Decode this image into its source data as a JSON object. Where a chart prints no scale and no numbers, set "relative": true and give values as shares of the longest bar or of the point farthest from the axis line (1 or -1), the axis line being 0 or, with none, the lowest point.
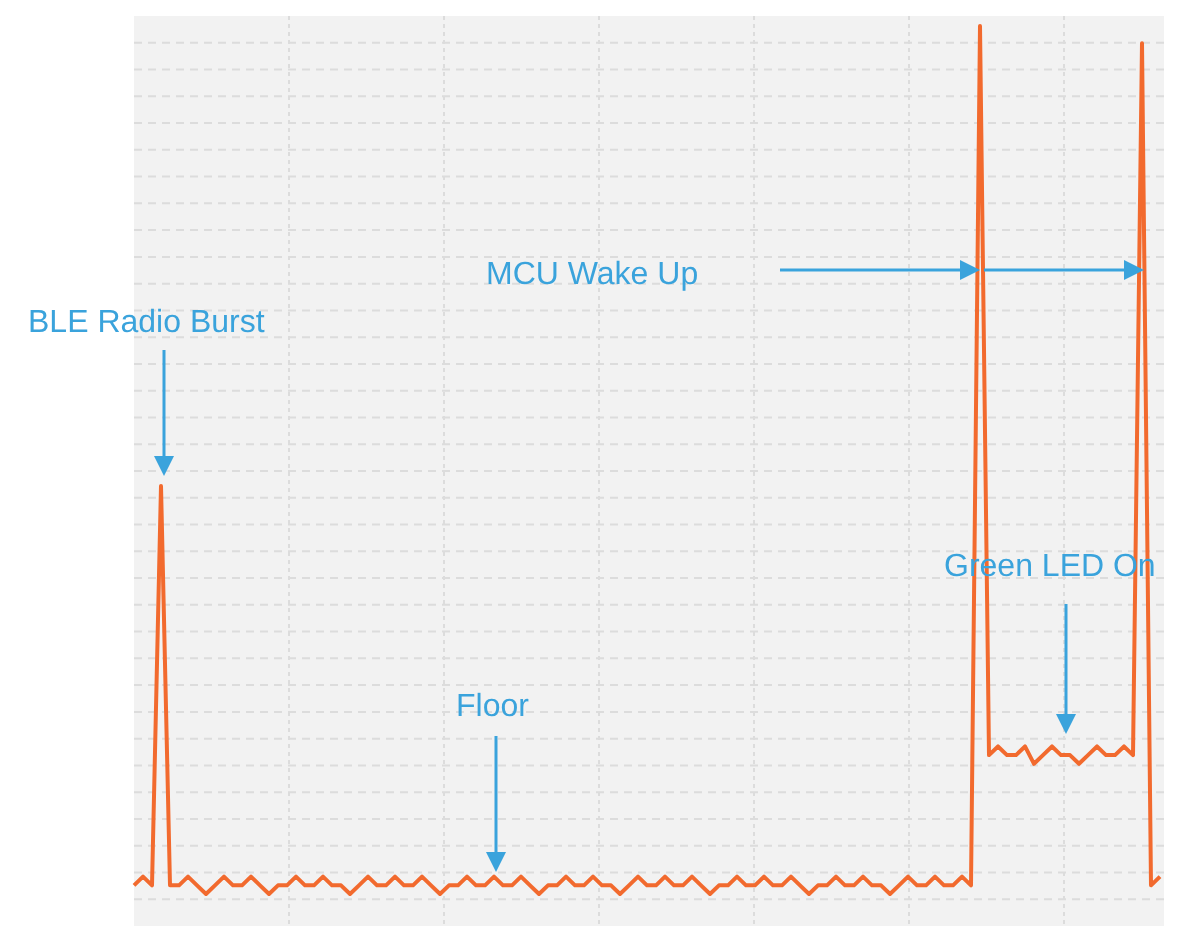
{
  "chart_data": {
    "type": "line",
    "relative": true,
    "grid": true,
    "categories": [
      null,
      null,
      null,
      null,
      null,
      null,
      null,
      null,
      null,
      null,
      null,
      null,
      null,
      null,
      null,
      null,
      null,
      null,
      null,
      null,
      null,
      null,
      null,
      null,
      null,
      null,
      null,
      null,
      null,
      null,
      null,
      null,
      null,
      null,
      null,
      null,
      null,
      null,
      null,
      null,
      null,
      null,
      null,
      null,
      null,
      null,
      null,
      null,
      null,
      null,
      null,
      null,
      null,
      null,
      null,
      null,
      null,
      null,
      null,
      null,
      null,
      null,
      null,
      null,
      null,
      null,
      null,
      null,
      null,
      null,
      null,
      null,
      null,
      null,
      null,
      null,
      null,
      null,
      null,
      null,
      null,
      null,
      null,
      null,
      null,
      null,
      null,
      null,
      null,
      null,
      null,
      null,
      null,
      null,
      null,
      null,
      null,
      null,
      null,
      null,
      null,
      null,
      null,
      null,
      null,
      null,
      null,
      null,
      null,
      null,
      null,
      null,
      null,
      null,
      null
    ],
    "series": [
      {
        "color": "#f26a2e",
        "values": [
          0.01,
          0.02,
          0.01,
          0.47,
          0.01,
          0.01,
          0.02,
          0.01,
          0,
          0.01,
          0.02,
          0.01,
          0.01,
          0.02,
          0.01,
          0,
          0.01,
          0.01,
          0.02,
          0.01,
          0.01,
          0.02,
          0.01,
          0.01,
          0,
          0.01,
          0.02,
          0.01,
          0.01,
          0.02,
          0.01,
          0.01,
          0.02,
          0.01,
          0,
          0.01,
          0.01,
          0.02,
          0.01,
          0.01,
          0.02,
          0.01,
          0.01,
          0.02,
          0.01,
          0,
          0.01,
          0.01,
          0.02,
          0.01,
          0.01,
          0.02,
          0.01,
          0.01,
          0,
          0.01,
          0.02,
          0.01,
          0.01,
          0.02,
          0.01,
          0.01,
          0.02,
          0.01,
          0,
          0.01,
          0.01,
          0.02,
          0.01,
          0.01,
          0.02,
          0.01,
          0.01,
          0.02,
          0.01,
          0,
          0.01,
          0.01,
          0.02,
          0.01,
          0.01,
          0.02,
          0.01,
          0.01,
          0,
          0.01,
          0.02,
          0.01,
          0.01,
          0.02,
          0.01,
          0.01,
          0.02,
          0.01,
          1,
          0.16,
          0.17,
          0.16,
          0.16,
          0.17,
          0.15,
          0.16,
          0.17,
          0.16,
          0.16,
          0.15,
          0.16,
          0.17,
          0.16,
          0.16,
          0.17,
          0.16,
          0.98,
          0.01,
          0.02
        ]
      }
    ],
    "annotations": [
      "BLE Radio Burst",
      "MCU Wake Up",
      "Floor",
      "Green LED On"
    ]
  }
}
